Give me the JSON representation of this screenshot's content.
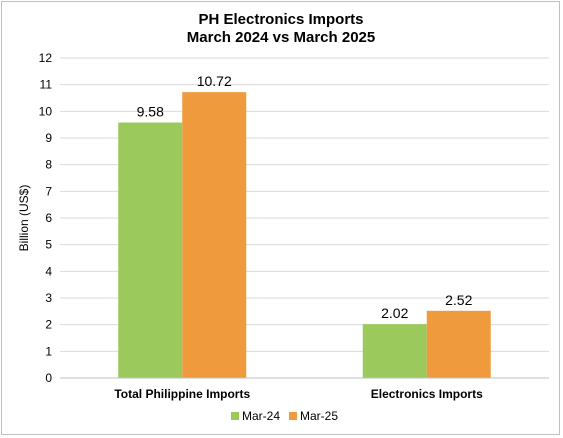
{
  "chart_data": {
    "type": "bar",
    "title": [
      "PH Electronics Imports",
      "March 2024 vs March 2025"
    ],
    "ylabel": "Billion (US$)",
    "xlabel": "",
    "categories": [
      "Total Philippine Imports",
      "Electronics Imports"
    ],
    "series": [
      {
        "name": "Mar-24",
        "values": [
          9.58,
          2.02
        ],
        "color": "#9bc95b"
      },
      {
        "name": "Mar-25",
        "values": [
          10.72,
          2.52
        ],
        "color": "#f09a3e"
      }
    ],
    "data_labels": [
      [
        "9.58",
        "2.02"
      ],
      [
        "10.72",
        "2.52"
      ]
    ],
    "ylim": [
      0,
      12
    ],
    "yticks": [
      0,
      1,
      2,
      3,
      4,
      5,
      6,
      7,
      8,
      9,
      10,
      11,
      12
    ],
    "grid": true,
    "legend_position": "bottom"
  }
}
